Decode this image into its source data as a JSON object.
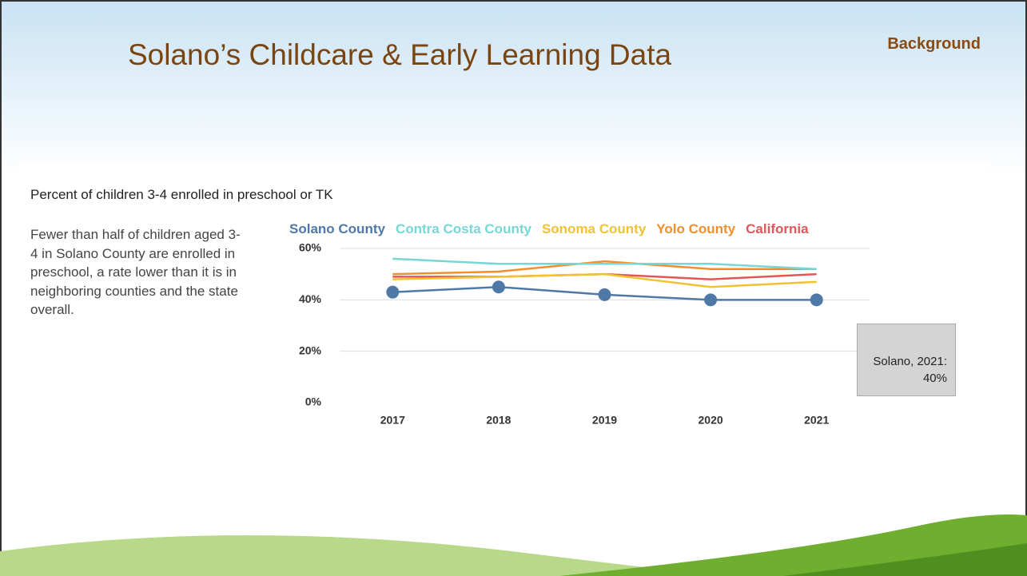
{
  "slide": {
    "title": "Solano’s Childcare & Early Learning Data",
    "tag": "Background"
  },
  "chart_data": {
    "type": "line",
    "title": "Percent of children 3-4 enrolled in preschool or TK",
    "description": "Fewer than half of children aged 3-4 in Solano County are enrolled in preschool, a rate lower than it is in neighboring counties and the state overall.",
    "annotation": "Solano, 2021: 40%",
    "categories": [
      "2017",
      "2018",
      "2019",
      "2020",
      "2021"
    ],
    "series": [
      {
        "name": "Solano County",
        "color": "#4e79a7",
        "values": [
          43,
          45,
          42,
          40,
          40
        ],
        "markers": true
      },
      {
        "name": "Contra Costa County",
        "color": "#76d7d7",
        "values": [
          56,
          54,
          54,
          54,
          52
        ]
      },
      {
        "name": "Sonoma County",
        "color": "#f1c232",
        "values": [
          48,
          49,
          50,
          45,
          47
        ]
      },
      {
        "name": "Yolo County",
        "color": "#f28e2b",
        "values": [
          50,
          51,
          55,
          52,
          52
        ]
      },
      {
        "name": "California",
        "color": "#e15759",
        "values": [
          49,
          49,
          50,
          48,
          50
        ]
      }
    ],
    "ylim": [
      0,
      60
    ],
    "yticks": [
      {
        "value": 0,
        "label": "0%"
      },
      {
        "value": 20,
        "label": "20%"
      },
      {
        "value": 40,
        "label": "40%"
      },
      {
        "value": 60,
        "label": "60%"
      }
    ],
    "grid": true
  }
}
